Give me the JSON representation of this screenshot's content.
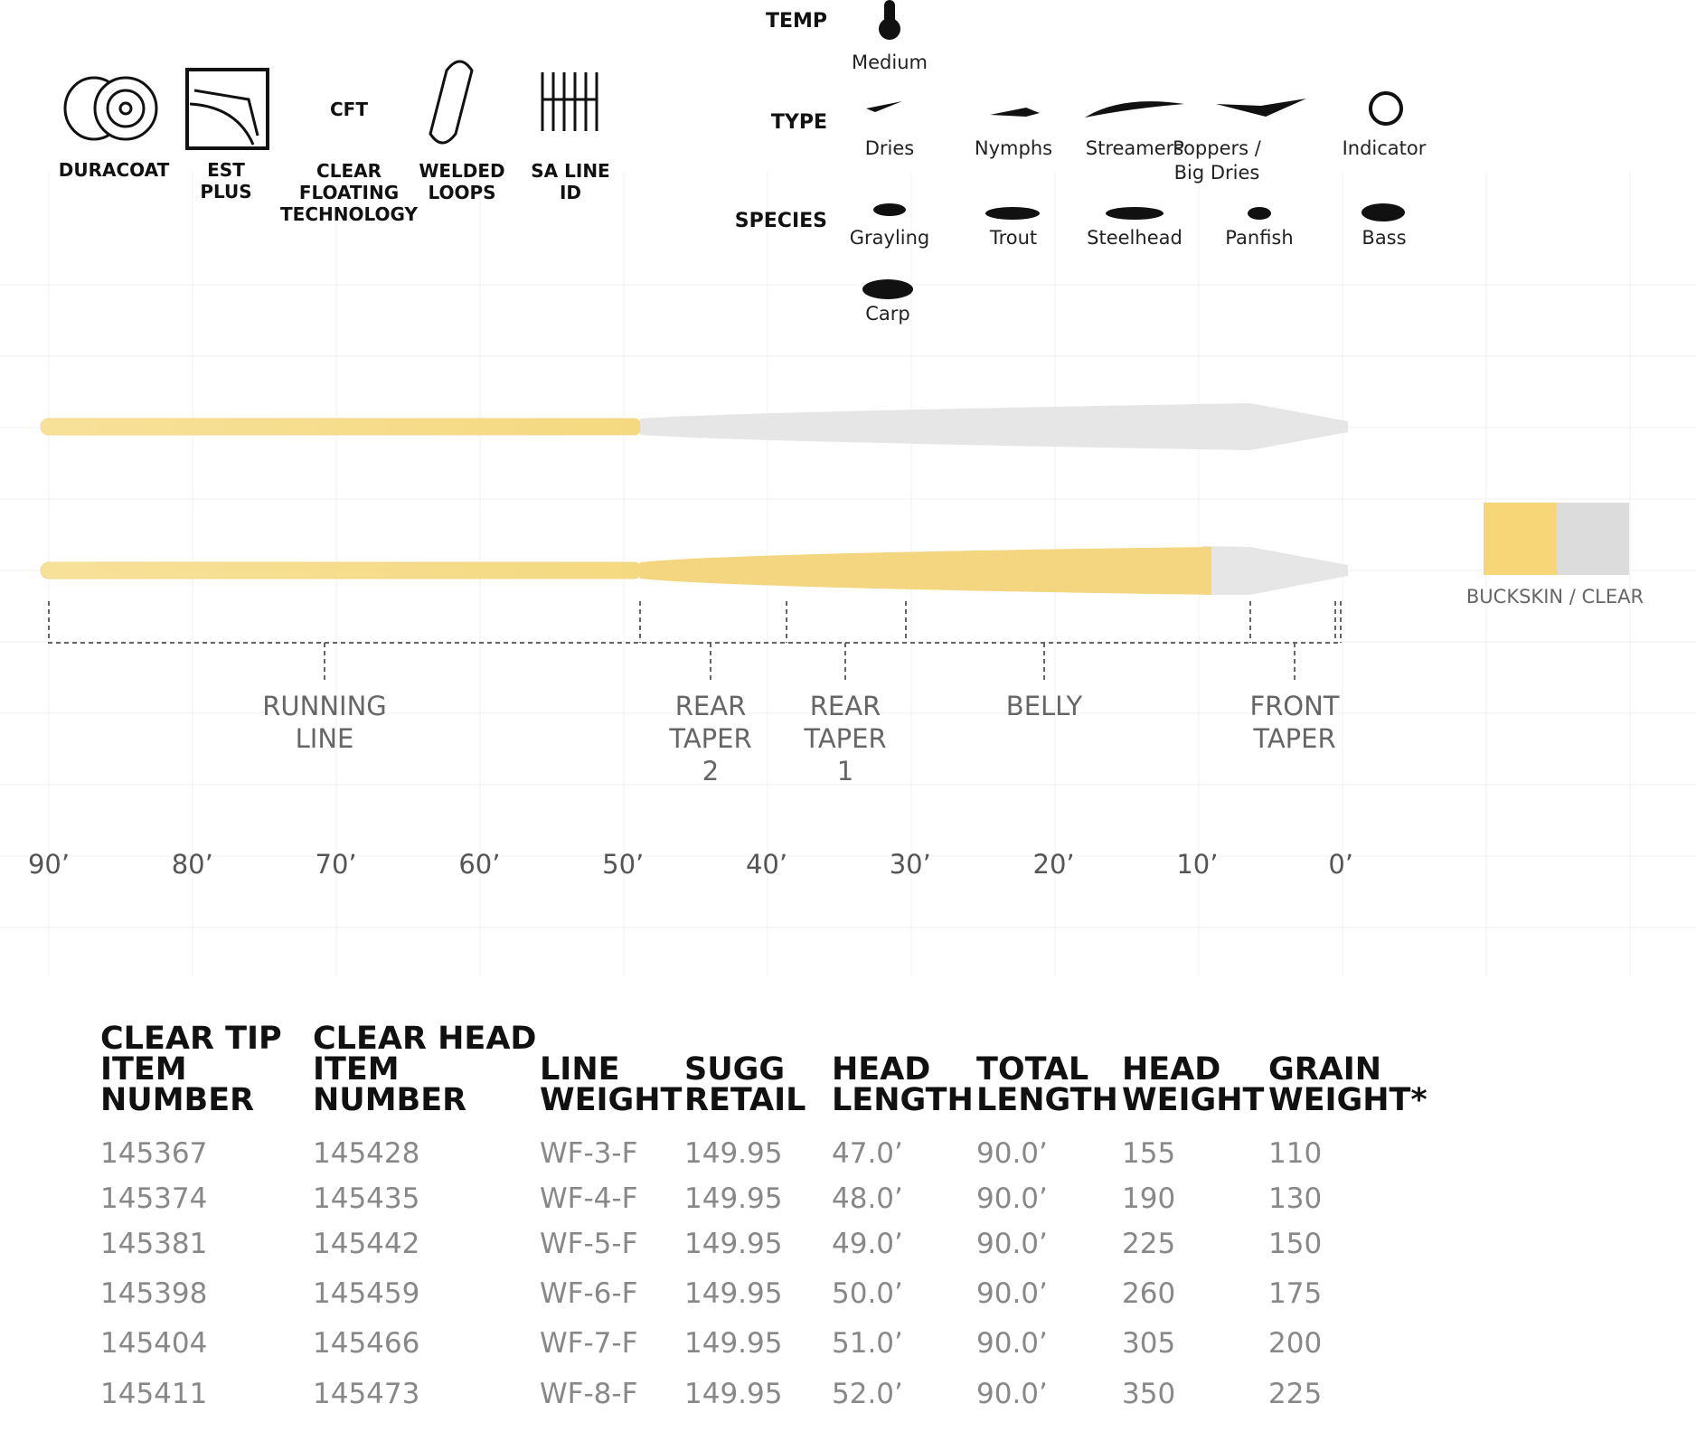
{
  "features": [
    "DURACOAT",
    [
      "EST",
      "PLUS"
    ],
    "CFT",
    [
      "CLEAR",
      "FLOATING",
      "TECHNOLOGY"
    ],
    [
      "WELDED",
      "LOOPS"
    ],
    [
      "SA LINE",
      "ID"
    ]
  ],
  "ratings": {
    "temp_label": "TEMP",
    "temp": "Medium",
    "type_label": "TYPE",
    "types": [
      "Dries",
      "Nymphs",
      "Streamers",
      [
        "Poppers /",
        "Big Dries"
      ],
      "Indicator"
    ],
    "species_label": "SPECIES",
    "species": [
      "Grayling",
      "Trout",
      "Steelhead",
      "Panfish",
      "Bass",
      "Carp"
    ]
  },
  "taper": {
    "sections": [
      [
        "RUNNING",
        "LINE"
      ],
      [
        "REAR",
        "TAPER",
        "2"
      ],
      [
        "REAR",
        "TAPER",
        "1"
      ],
      [
        "BELLY"
      ],
      [
        "FRONT",
        "TAPER"
      ]
    ],
    "distances": [
      "90’",
      "80’",
      "70’",
      "60’",
      "50’",
      "40’",
      "30’",
      "20’",
      "10’",
      "0’"
    ],
    "color": "BUCKSKIN / CLEAR"
  },
  "table": {
    "headers": [
      [
        "CLEAR TIP",
        "ITEM",
        "NUMBER"
      ],
      [
        "CLEAR HEAD",
        "ITEM",
        "NUMBER"
      ],
      [
        "LINE",
        "WEIGHT"
      ],
      [
        "SUGG",
        "RETAIL"
      ],
      [
        "HEAD",
        "LENGTH"
      ],
      [
        "TOTAL",
        "LENGTH"
      ],
      [
        "HEAD",
        "WEIGHT"
      ],
      [
        "GRAIN",
        "WEIGHT*"
      ]
    ],
    "rows": [
      [
        "145367",
        "145428",
        "WF-3-F",
        "149.95",
        "47.0’",
        "90.0’",
        "155",
        "110"
      ],
      [
        "145374",
        "145435",
        "WF-4-F",
        "149.95",
        "48.0’",
        "90.0’",
        "190",
        "130"
      ],
      [
        "145381",
        "145442",
        "WF-5-F",
        "149.95",
        "49.0’",
        "90.0’",
        "225",
        "150"
      ],
      [
        "145398",
        "145459",
        "WF-6-F",
        "149.95",
        "50.0’",
        "90.0’",
        "260",
        "175"
      ],
      [
        "145404",
        "145466",
        "WF-7-F",
        "149.95",
        "51.0’",
        "90.0’",
        "305",
        "200"
      ],
      [
        "145411",
        "145473",
        "WF-8-F",
        "149.95",
        "52.0’",
        "90.0’",
        "350",
        "225"
      ]
    ]
  }
}
